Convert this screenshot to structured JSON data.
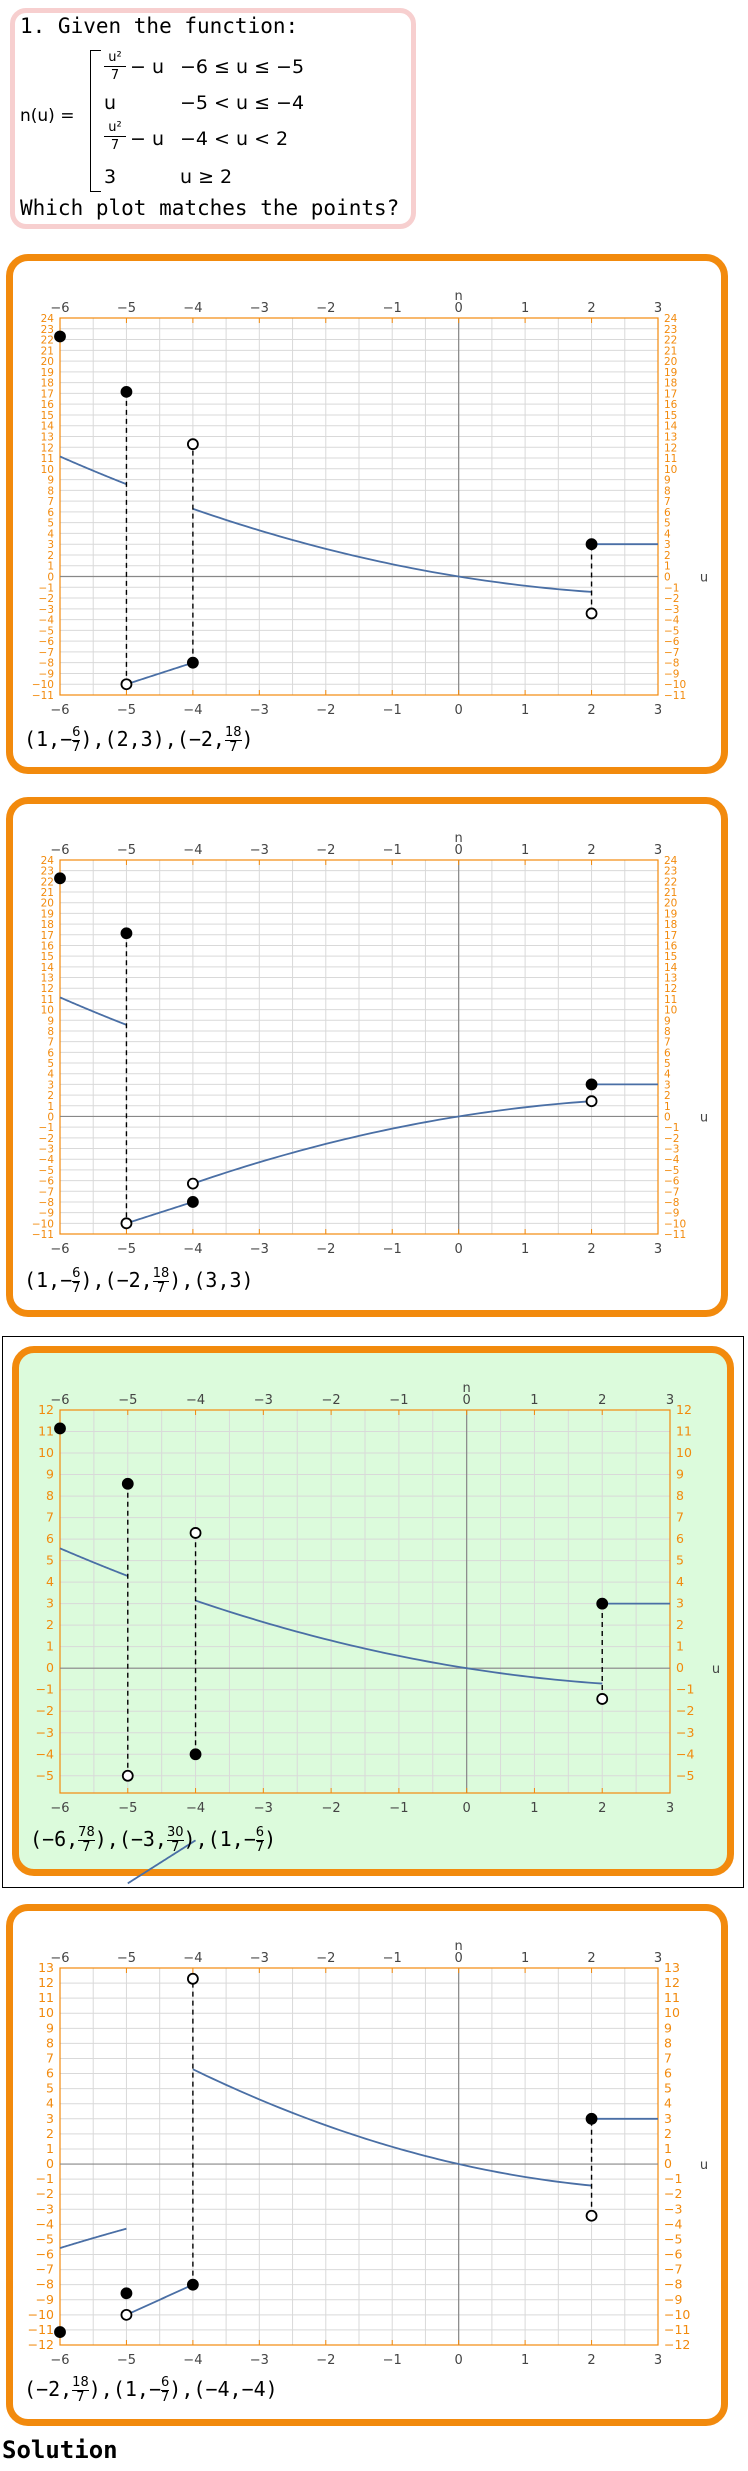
{
  "question": {
    "title": "1. Given the function:",
    "function_name": "n(u) =",
    "pieces": [
      {
        "expr_num": "u²",
        "expr_den": "7",
        "expr_tail": "− u",
        "condition": "−6 ≤ u ≤ −5"
      },
      {
        "expr": "u",
        "condition": "−5 < u ≤ −4"
      },
      {
        "expr_num": "u²",
        "expr_den": "7",
        "expr_tail": "− u",
        "condition": "−4 < u < 2"
      },
      {
        "expr": "3",
        "condition": "u ≥ 2"
      }
    ],
    "prompt": "Which plot matches the points?"
  },
  "colors": {
    "accent": "#f28a0d",
    "curve": "#4a6fa5",
    "correct_bg": "#dcfbdc",
    "question_border": "#f7cfcf",
    "grid": "#d9d9d9"
  },
  "chart_data": [
    {
      "type": "line",
      "id": "A",
      "correct": false,
      "axis_labels": {
        "x": "u",
        "y": "n"
      },
      "xlim": [
        -6,
        3
      ],
      "ylim": [
        -11,
        24
      ],
      "xticks": [
        -6,
        -5,
        -4,
        -3,
        -2,
        -1,
        0,
        1,
        2,
        3
      ],
      "yticks": [
        -11,
        -10,
        -9,
        -8,
        -7,
        -6,
        -5,
        -4,
        -3,
        -2,
        -1,
        0,
        1,
        2,
        3,
        4,
        5,
        6,
        7,
        8,
        9,
        10,
        11,
        12,
        13,
        14,
        15,
        16,
        17,
        18,
        19,
        20,
        21,
        22,
        23,
        24
      ],
      "pieces": [
        {
          "fn": "q",
          "from": -6,
          "to": -5
        },
        {
          "fn": "lin",
          "from": -5,
          "to": -4
        },
        {
          "fn": "q",
          "from": -4,
          "to": 2
        },
        {
          "fn": "const3",
          "from": 2,
          "to": 3
        }
      ],
      "points": [
        {
          "x": -6,
          "y": 22.2857,
          "filled": true
        },
        {
          "x": -5,
          "y": 17.1429,
          "filled": true
        },
        {
          "x": -5,
          "y": -10,
          "filled": false
        },
        {
          "x": -4,
          "y": -8,
          "filled": true
        },
        {
          "x": -4,
          "y": 12.2857,
          "filled": false
        },
        {
          "x": 2,
          "y": -3.4286,
          "filled": false
        },
        {
          "x": 2,
          "y": 3,
          "filled": true
        }
      ],
      "jumps": [
        {
          "x": -5,
          "y1": 17.1429,
          "y2": -10
        },
        {
          "x": -4,
          "y1": -8,
          "y2": 12.2857
        },
        {
          "x": 2,
          "y1": -3.4286,
          "y2": 3
        }
      ],
      "caption": [
        {
          "a": "1",
          "num": "6",
          "den": "7",
          "neg": true,
          "frac_second": true
        },
        {
          "a": "2",
          "b": "3"
        },
        {
          "a": "−2",
          "num": "18",
          "den": "7",
          "neg": false,
          "frac_second": true
        }
      ]
    },
    {
      "type": "line",
      "id": "B",
      "correct": false,
      "axis_labels": {
        "x": "u",
        "y": "n"
      },
      "xlim": [
        -6,
        3
      ],
      "ylim": [
        -11,
        24
      ],
      "xticks": [
        -6,
        -5,
        -4,
        -3,
        -2,
        -1,
        0,
        1,
        2,
        3
      ],
      "yticks": [
        -11,
        -10,
        -9,
        -8,
        -7,
        -6,
        -5,
        -4,
        -3,
        -2,
        -1,
        0,
        1,
        2,
        3,
        4,
        5,
        6,
        7,
        8,
        9,
        10,
        11,
        12,
        13,
        14,
        15,
        16,
        17,
        18,
        19,
        20,
        21,
        22,
        23,
        24
      ],
      "pieces": [
        {
          "fn": "q",
          "from": -6,
          "to": -5
        },
        {
          "fn": "lin",
          "from": -5,
          "to": -4
        },
        {
          "fn": "qneg",
          "from": -4,
          "to": 2
        },
        {
          "fn": "const3",
          "from": 2,
          "to": 3
        }
      ],
      "points": [
        {
          "x": -6,
          "y": 22.2857,
          "filled": true
        },
        {
          "x": -5,
          "y": 17.1429,
          "filled": true
        },
        {
          "x": -5,
          "y": -10,
          "filled": false
        },
        {
          "x": -4,
          "y": -8,
          "filled": true
        },
        {
          "x": -4,
          "y": -6.2857,
          "filled": false
        },
        {
          "x": 2,
          "y": 1.4286,
          "filled": false
        },
        {
          "x": 2,
          "y": 3,
          "filled": true
        }
      ],
      "jumps": [
        {
          "x": -5,
          "y1": 17.1429,
          "y2": -10
        }
      ],
      "caption": [
        {
          "a": "1",
          "num": "6",
          "den": "7",
          "neg": true,
          "frac_second": true
        },
        {
          "a": "−2",
          "num": "18",
          "den": "7",
          "neg": false,
          "frac_second": true
        },
        {
          "a": "3",
          "b": "3"
        }
      ]
    },
    {
      "type": "line",
      "id": "C",
      "correct": true,
      "axis_labels": {
        "x": "u",
        "y": "n"
      },
      "xlim": [
        -6,
        3
      ],
      "ylim": [
        -5.8,
        12
      ],
      "xticks": [
        -6,
        -5,
        -4,
        -3,
        -2,
        -1,
        0,
        1,
        2,
        3
      ],
      "yticks": [
        -5,
        -4,
        -3,
        -2,
        -1,
        0,
        1,
        2,
        3,
        4,
        5,
        6,
        7,
        8,
        9,
        10,
        11,
        12
      ],
      "pieces": [
        {
          "fn": "q2",
          "from": -6,
          "to": -5
        },
        {
          "fn": "lin",
          "from": -5,
          "to": -4
        },
        {
          "fn": "q2",
          "from": -4,
          "to": 2
        },
        {
          "fn": "const3",
          "from": 2,
          "to": 3
        }
      ],
      "points": [
        {
          "x": -6,
          "y": 11.1429,
          "filled": true
        },
        {
          "x": -5,
          "y": 8.5714,
          "filled": true
        },
        {
          "x": -5,
          "y": -5,
          "filled": false
        },
        {
          "x": -4,
          "y": -4,
          "filled": true
        },
        {
          "x": -4,
          "y": 6.2857,
          "filled": false
        },
        {
          "x": 2,
          "y": -1.4286,
          "filled": false
        },
        {
          "x": 2,
          "y": 3,
          "filled": true
        }
      ],
      "jumps": [
        {
          "x": -5,
          "y1": 8.5714,
          "y2": -5
        },
        {
          "x": -4,
          "y1": -4,
          "y2": 6.2857
        },
        {
          "x": 2,
          "y1": -1.4286,
          "y2": 3
        }
      ],
      "caption": [
        {
          "a": "−6",
          "num": "78",
          "den": "7",
          "neg": false,
          "frac_second": true
        },
        {
          "a": "−3",
          "num": "30",
          "den": "7",
          "neg": false,
          "frac_second": true
        },
        {
          "a": "1",
          "num": "6",
          "den": "7",
          "neg": true,
          "frac_second": true
        }
      ]
    },
    {
      "type": "line",
      "id": "D",
      "correct": false,
      "axis_labels": {
        "x": "u",
        "y": "n"
      },
      "xlim": [
        -6,
        3
      ],
      "ylim": [
        -12,
        13
      ],
      "xticks": [
        -6,
        -5,
        -4,
        -3,
        -2,
        -1,
        0,
        1,
        2,
        3
      ],
      "yticks": [
        -12,
        -11,
        -10,
        -9,
        -8,
        -7,
        -6,
        -5,
        -4,
        -3,
        -2,
        -1,
        0,
        1,
        2,
        3,
        4,
        5,
        6,
        7,
        8,
        9,
        10,
        11,
        12,
        13
      ],
      "pieces": [
        {
          "fn": "qD1",
          "from": -6,
          "to": -5
        },
        {
          "fn": "lin2",
          "from": -5,
          "to": -4
        },
        {
          "fn": "q",
          "from": -4,
          "to": 2
        },
        {
          "fn": "const3",
          "from": 2,
          "to": 3
        }
      ],
      "points": [
        {
          "x": -6,
          "y": -11.1429,
          "filled": true
        },
        {
          "x": -5,
          "y": -8.5714,
          "filled": true
        },
        {
          "x": -5,
          "y": -10,
          "filled": false
        },
        {
          "x": -4,
          "y": -8,
          "filled": true
        },
        {
          "x": -4,
          "y": 12.2857,
          "filled": false
        },
        {
          "x": 2,
          "y": -3.4286,
          "filled": false
        },
        {
          "x": 2,
          "y": 3,
          "filled": true
        }
      ],
      "jumps": [
        {
          "x": -4,
          "y1": -8,
          "y2": 12.2857
        },
        {
          "x": 2,
          "y1": -3.4286,
          "y2": 3
        }
      ],
      "caption": [
        {
          "a": "−2",
          "num": "18",
          "den": "7",
          "neg": false,
          "frac_second": true
        },
        {
          "a": "1",
          "num": "6",
          "den": "7",
          "neg": true,
          "frac_second": true
        },
        {
          "a": "−4",
          "b": "−4"
        }
      ]
    }
  ],
  "footer": {
    "solution_label": "Solution"
  }
}
